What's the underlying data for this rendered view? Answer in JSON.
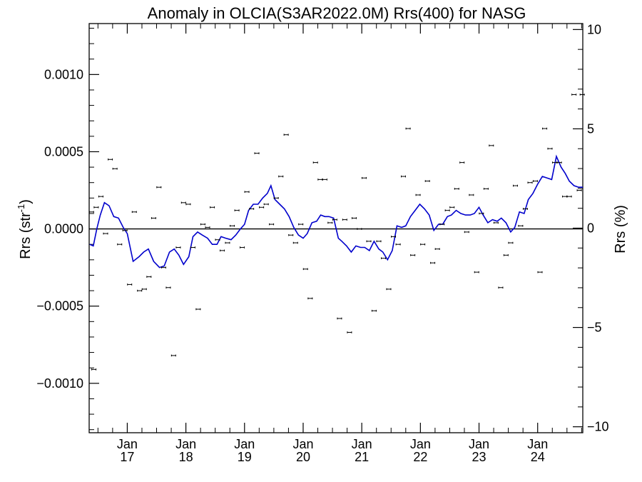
{
  "chart_data": {
    "type": "scatter",
    "title": "Anomaly in OLCIA(S3AR2022.0M) Rrs(400) for NASG",
    "ylabel_left_main": "Rrs (str",
    "ylabel_left_sup": "-1",
    "ylabel_left_close": ")",
    "ylabel_right": "Rrs (%)",
    "xlim": [
      2016.35,
      2024.77
    ],
    "ylim_left": [
      -0.00132,
      0.00133
    ],
    "ylim_right": [
      -10.3,
      10.3
    ],
    "left_ticks": [
      {
        "v": 0.001,
        "label": "0.0010"
      },
      {
        "v": 0.0005,
        "label": "0.0005"
      },
      {
        "v": 0.0,
        "label": "0.0000"
      },
      {
        "v": -0.0005,
        "label": "−0.0005"
      },
      {
        "v": -0.001,
        "label": "−0.0010"
      }
    ],
    "right_ticks": [
      {
        "v": 10,
        "label": "10"
      },
      {
        "v": 5,
        "label": "5"
      },
      {
        "v": 0,
        "label": "0"
      },
      {
        "v": -5,
        "label": "−5"
      },
      {
        "v": -10,
        "label": "−10"
      }
    ],
    "x_ticks": [
      {
        "v": 2017.0,
        "month": "Jan",
        "year": "17"
      },
      {
        "v": 2018.0,
        "month": "Jan",
        "year": "18"
      },
      {
        "v": 2019.0,
        "month": "Jan",
        "year": "19"
      },
      {
        "v": 2020.0,
        "month": "Jan",
        "year": "20"
      },
      {
        "v": 2021.0,
        "month": "Jan",
        "year": "21"
      },
      {
        "v": 2022.0,
        "month": "Jan",
        "year": "22"
      },
      {
        "v": 2023.0,
        "month": "Jan",
        "year": "23"
      },
      {
        "v": 2024.0,
        "month": "Jan",
        "year": "24"
      }
    ],
    "zero_line": 0,
    "series": [
      {
        "kind": "points",
        "color": "#000000",
        "error": 6e-06,
        "x": [
          2016.39,
          2016.43,
          2016.47,
          2016.55,
          2016.63,
          2016.71,
          2016.79,
          2016.87,
          2016.96,
          2017.04,
          2017.12,
          2017.21,
          2017.29,
          2017.37,
          2017.45,
          2017.54,
          2017.62,
          2017.7,
          2017.79,
          2017.87,
          2017.96,
          2018.04,
          2018.12,
          2018.21,
          2018.29,
          2018.37,
          2018.45,
          2018.54,
          2018.62,
          2018.71,
          2018.79,
          2018.87,
          2018.96,
          2019.04,
          2019.12,
          2019.21,
          2019.29,
          2019.37,
          2019.46,
          2019.54,
          2019.62,
          2019.71,
          2019.79,
          2019.87,
          2019.96,
          2020.04,
          2020.12,
          2020.21,
          2020.29,
          2020.37,
          2020.46,
          2020.54,
          2020.62,
          2020.71,
          2020.79,
          2020.87,
          2020.96,
          2021.04,
          2021.12,
          2021.21,
          2021.29,
          2021.37,
          2021.46,
          2021.54,
          2021.62,
          2021.71,
          2021.79,
          2021.87,
          2021.96,
          2022.04,
          2022.12,
          2022.21,
          2022.29,
          2022.37,
          2022.46,
          2022.54,
          2022.62,
          2022.71,
          2022.79,
          2022.87,
          2022.96,
          2023.04,
          2023.12,
          2023.21,
          2023.29,
          2023.37,
          2023.46,
          2023.54,
          2023.62,
          2023.71,
          2023.79,
          2023.87,
          2023.96,
          2024.04,
          2024.12,
          2024.21,
          2024.29,
          2024.37,
          2024.46,
          2024.54,
          2024.62,
          2024.71,
          2024.76
        ],
        "y": [
          0.00011,
          -0.00091,
          0.00014,
          0.00021,
          -3e-05,
          0.00045,
          0.00039,
          -0.0001,
          -1e-05,
          -0.00036,
          0.00011,
          -0.0004,
          -0.00039,
          -0.00031,
          7e-05,
          0.00027,
          -0.00025,
          -0.00038,
          -0.00082,
          -0.00012,
          0.00017,
          0.00016,
          -0.00012,
          -0.00052,
          3e-05,
          1e-05,
          0.00014,
          -7e-05,
          -0.00014,
          -9e-05,
          2e-05,
          0.00012,
          -0.00012,
          0.00024,
          0.00013,
          0.00049,
          0.00014,
          0.00016,
          3e-05,
          0.0002,
          0.00034,
          0.00061,
          -4e-05,
          -9e-05,
          3e-05,
          -0.00026,
          -0.00045,
          0.00043,
          0.00032,
          0.00032,
          4e-05,
          6e-05,
          -0.00058,
          6e-05,
          -0.00067,
          7e-05,
          0.0,
          0.00033,
          -8e-05,
          -0.00053,
          -8e-05,
          -0.00019,
          -0.00039,
          -5e-05,
          -0.0001,
          0.00034,
          0.00065,
          -0.00017,
          0.00022,
          -0.0001,
          0.00031,
          -0.00022,
          -0.00013,
          3e-05,
          0.00012,
          0.00014,
          0.00026,
          0.00043,
          -2e-05,
          0.00022,
          -0.00028,
          0.0001,
          0.00026,
          0.00054,
          4e-05,
          -0.00038,
          -0.00017,
          -9e-05,
          0.00028,
          2e-05,
          0.00013,
          0.0003,
          0.00031,
          -0.00028,
          0.00065,
          0.00052,
          0.00043,
          0.00043,
          0.00021,
          0.00021,
          0.00087,
          0.00025,
          0.00087
        ]
      },
      {
        "kind": "line",
        "color": "#0000cc",
        "x": [
          2016.36,
          2016.42,
          2016.48,
          2016.54,
          2016.61,
          2016.69,
          2016.77,
          2016.85,
          2016.93,
          2017.0,
          2017.1,
          2017.2,
          2017.28,
          2017.36,
          2017.45,
          2017.55,
          2017.63,
          2017.72,
          2017.8,
          2017.88,
          2017.96,
          2018.05,
          2018.12,
          2018.2,
          2018.28,
          2018.37,
          2018.45,
          2018.53,
          2018.6,
          2018.68,
          2018.77,
          2018.85,
          2018.93,
          2019.0,
          2019.07,
          2019.15,
          2019.23,
          2019.31,
          2019.39,
          2019.45,
          2019.52,
          2019.6,
          2019.68,
          2019.76,
          2019.84,
          2019.92,
          2020.0,
          2020.07,
          2020.15,
          2020.23,
          2020.3,
          2020.37,
          2020.44,
          2020.52,
          2020.6,
          2020.66,
          2020.74,
          2020.82,
          2020.9,
          2020.98,
          2021.05,
          2021.13,
          2021.21,
          2021.29,
          2021.36,
          2021.44,
          2021.52,
          2021.6,
          2021.68,
          2021.75,
          2021.83,
          2021.91,
          2021.99,
          2022.07,
          2022.15,
          2022.23,
          2022.31,
          2022.38,
          2022.46,
          2022.53,
          2022.61,
          2022.69,
          2022.77,
          2022.85,
          2022.92,
          2023.0,
          2023.07,
          2023.15,
          2023.23,
          2023.31,
          2023.38,
          2023.46,
          2023.54,
          2023.61,
          2023.69,
          2023.77,
          2023.84,
          2023.92,
          2024.0,
          2024.08,
          2024.16,
          2024.24,
          2024.32,
          2024.4,
          2024.47,
          2024.54,
          2024.62,
          2024.7,
          2024.77
        ],
        "y": [
          -0.0001,
          -0.00011,
          0.0,
          9e-05,
          0.00017,
          0.00015,
          8e-05,
          7e-05,
          1e-05,
          -3e-05,
          -0.00021,
          -0.00018,
          -0.00015,
          -0.00013,
          -0.00021,
          -0.00025,
          -0.00024,
          -0.00015,
          -0.00013,
          -0.00017,
          -0.00023,
          -0.00018,
          -5e-05,
          -2e-05,
          -4e-05,
          -6e-05,
          -0.0001,
          -0.0001,
          -5e-05,
          -6e-05,
          -7e-05,
          -4e-05,
          0.0,
          3e-05,
          0.00012,
          0.00016,
          0.00016,
          0.0002,
          0.00023,
          0.00028,
          0.00019,
          0.00016,
          0.00013,
          8e-05,
          1e-05,
          -4e-05,
          -6e-05,
          -3e-05,
          4e-05,
          5e-05,
          9e-05,
          8e-05,
          8e-05,
          7e-05,
          -6e-05,
          -8e-05,
          -0.00011,
          -0.00015,
          -0.00011,
          -0.00012,
          -0.00012,
          -0.00014,
          -8e-05,
          -0.00013,
          -0.00015,
          -0.0002,
          -0.00014,
          2e-05,
          1e-05,
          2e-05,
          8e-05,
          0.00012,
          0.00016,
          0.00013,
          9e-05,
          -1e-05,
          3e-05,
          3e-05,
          8e-05,
          9e-05,
          0.00012,
          0.0001,
          9e-05,
          9e-05,
          0.0001,
          0.00014,
          9e-05,
          4e-05,
          6e-05,
          5e-05,
          7e-05,
          4e-05,
          -2e-05,
          1e-05,
          0.00011,
          0.0001,
          0.00019,
          0.00023,
          0.00029,
          0.00034,
          0.00033,
          0.00032,
          0.00047,
          0.0004,
          0.00036,
          0.00031,
          0.00028,
          0.00027,
          0.00027
        ]
      }
    ]
  }
}
